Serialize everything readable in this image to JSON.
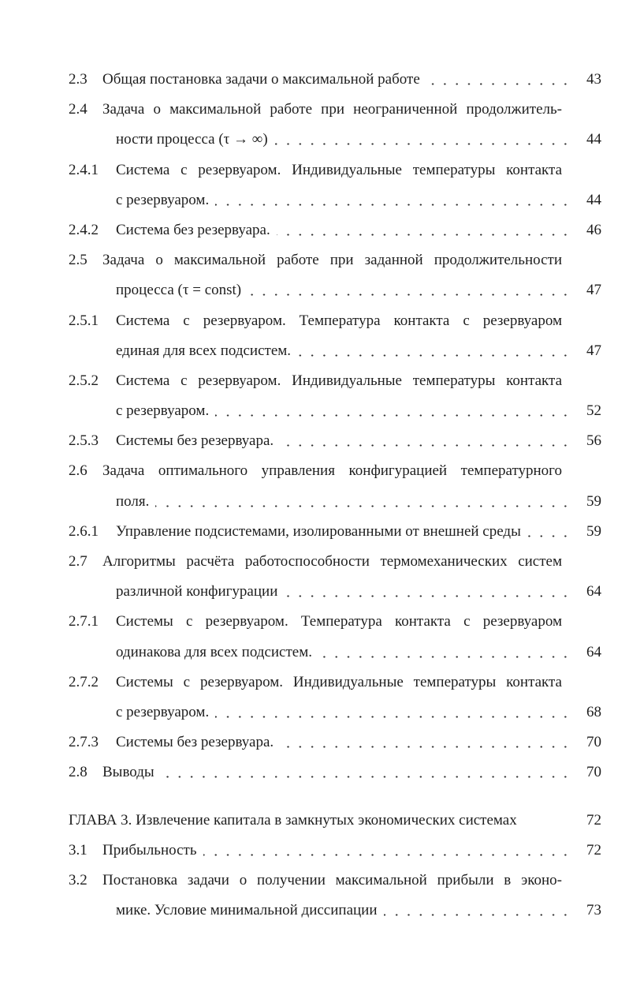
{
  "entries": [
    {
      "num": "2.3",
      "level": 2,
      "lines": [
        "Общая постановка задачи о максимальной работе"
      ],
      "page": "43"
    },
    {
      "num": "2.4",
      "level": 2,
      "lines": [
        "Задача о максимальной работе при неограниченной продолжитель-",
        "ности процесса (τ → ∞)"
      ],
      "page": "44"
    },
    {
      "num": "2.4.1",
      "level": 3,
      "lines": [
        "Система с резервуаром. Индивидуальные температуры контакта",
        "с резервуаром."
      ],
      "page": "44"
    },
    {
      "num": "2.4.2",
      "level": 3,
      "lines": [
        "Система без резервуара."
      ],
      "page": "46"
    },
    {
      "num": "2.5",
      "level": 2,
      "lines": [
        "Задача о максимальной работе при заданной продолжительности",
        "процесса (τ = const)"
      ],
      "page": "47"
    },
    {
      "num": "2.5.1",
      "level": 3,
      "lines": [
        "Система с резервуаром. Температура контакта с резервуаром",
        "единая для всех подсистем."
      ],
      "page": "47"
    },
    {
      "num": "2.5.2",
      "level": 3,
      "lines": [
        "Система с резервуаром. Индивидуальные температуры контакта",
        "с резервуаром."
      ],
      "page": "52"
    },
    {
      "num": "2.5.3",
      "level": 3,
      "lines": [
        "Системы без резервуара."
      ],
      "page": "56"
    },
    {
      "num": "2.6",
      "level": 2,
      "lines": [
        "Задача оптимального управления конфигурацией температурного",
        "поля."
      ],
      "page": "59"
    },
    {
      "num": "2.6.1",
      "level": 3,
      "lines": [
        "Управление подсистемами, изолированными от внешней среды"
      ],
      "page": "59"
    },
    {
      "num": "2.7",
      "level": 2,
      "lines": [
        "Алгоритмы расчёта работоспособности термомеханических систем",
        "различной конфигурации"
      ],
      "page": "64"
    },
    {
      "num": "2.7.1",
      "level": 3,
      "lines": [
        "Системы с резервуаром. Температура контакта с резервуаром",
        "одинакова для всех подсистем."
      ],
      "page": "64"
    },
    {
      "num": "2.7.2",
      "level": 3,
      "lines": [
        "Системы с резервуаром. Индивидуальные температуры контакта",
        "с резервуаром."
      ],
      "page": "68"
    },
    {
      "num": "2.7.3",
      "level": 3,
      "lines": [
        "Системы без резервуара."
      ],
      "page": "70"
    },
    {
      "num": "2.8",
      "level": 2,
      "lines": [
        "Выводы"
      ],
      "page": "70"
    },
    {
      "num": "",
      "level": 1,
      "lines": [
        "ГЛАВА 3. Извлечение капитала в замкнутых экономических системах"
      ],
      "page": "72"
    },
    {
      "num": "3.1",
      "level": 2,
      "lines": [
        "Прибыльность"
      ],
      "page": "72"
    },
    {
      "num": "3.2",
      "level": 2,
      "lines": [
        "Постановка задачи о получении максимальной прибыли в эконо-",
        "мике. Условие минимальной диссипации"
      ],
      "page": "73"
    }
  ]
}
